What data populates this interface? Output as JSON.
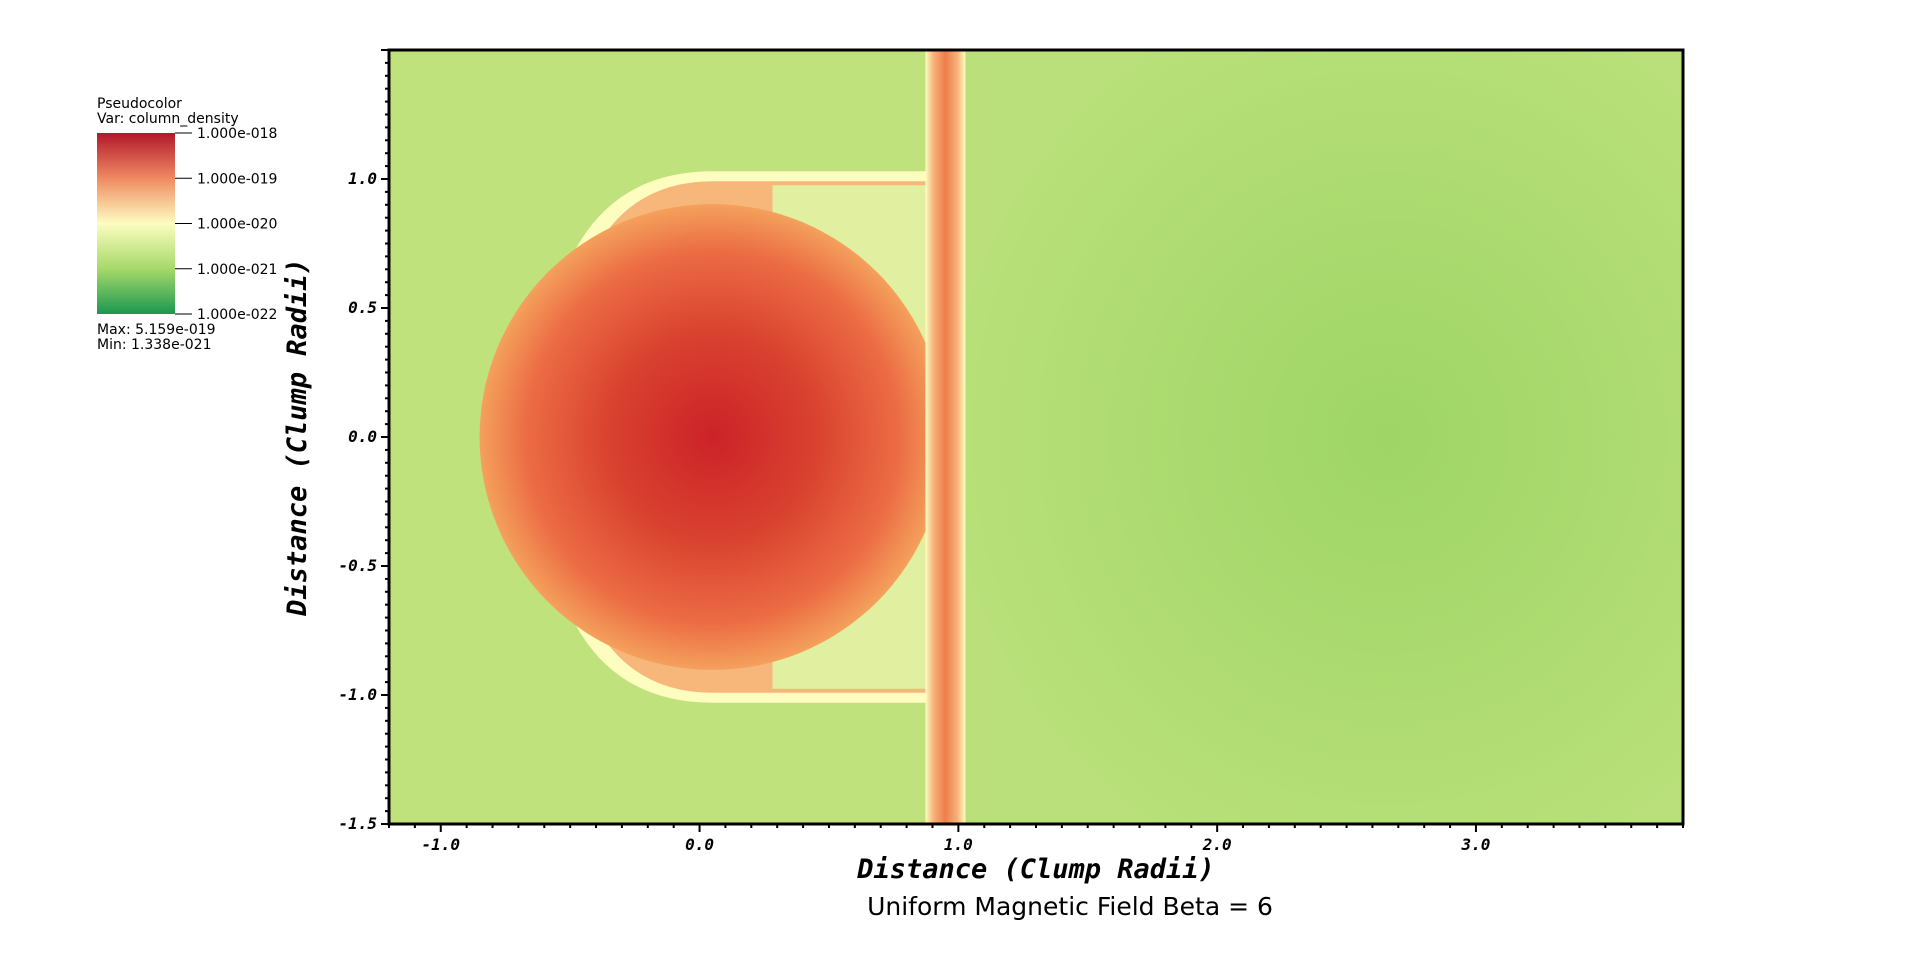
{
  "chart_data": {
    "type": "heatmap",
    "plot_type": "Pseudocolor",
    "variable": "Var: column_density",
    "title": "Uniform Magnetic Field Beta = 6",
    "xlabel": "Distance (Clump Radii)",
    "ylabel": "Distance (Clump Radii)",
    "xlim": [
      -1.2,
      3.8
    ],
    "ylim": [
      -1.5,
      1.5
    ],
    "xticks": [
      {
        "value": -1.0,
        "label": "-1.0"
      },
      {
        "value": 0.0,
        "label": "0.0"
      },
      {
        "value": 1.0,
        "label": "1.0"
      },
      {
        "value": 2.0,
        "label": "2.0"
      },
      {
        "value": 3.0,
        "label": "3.0"
      }
    ],
    "yticks": [
      {
        "value": 1.0,
        "label": "1.0"
      },
      {
        "value": 0.5,
        "label": "0.5"
      },
      {
        "value": 0.0,
        "label": "0.0"
      },
      {
        "value": -0.5,
        "label": "-0.5"
      },
      {
        "value": -1.0,
        "label": "-1.0"
      },
      {
        "value": -1.5,
        "label": "-1.5"
      }
    ],
    "colorbar": {
      "scale": "log",
      "labels": [
        "1.000e-018",
        "1.000e-019",
        "1.000e-020",
        "1.000e-021",
        "1.000e-022"
      ],
      "colors": [
        "#b2182b",
        "#ef8a62",
        "#fdfdc0",
        "#a6d96a",
        "#1a9850"
      ],
      "max_label": "Max:  5.159e-019",
      "min_label": "Min:  1.338e-021"
    },
    "features": {
      "clump_center": [
        0.05,
        0.0
      ],
      "clump_radius": 0.9,
      "shock_front_x": 0.95,
      "background_level": "1e-21",
      "peak_level": "5.159e-19"
    },
    "grid": false,
    "legend_position": "top-left"
  }
}
